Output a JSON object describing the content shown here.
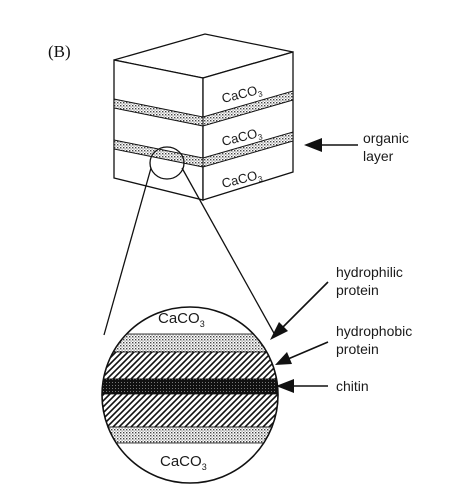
{
  "panel_label": "(B)",
  "cube": {
    "layers": [
      {
        "formula": "CaCO",
        "sub": "3"
      },
      {
        "formula": "CaCO",
        "sub": "3"
      },
      {
        "formula": "CaCO",
        "sub": "3"
      }
    ]
  },
  "callouts": {
    "organic_layer": {
      "line1": "organic",
      "line2": "layer"
    },
    "hydrophilic": {
      "line1": "hydrophilic",
      "line2": "protein"
    },
    "hydrophobic": {
      "line1": "hydrophobic",
      "line2": "protein"
    },
    "chitin": {
      "line1": "chitin"
    }
  },
  "magnified": {
    "top": {
      "formula": "CaCO",
      "sub": "3"
    },
    "bottom": {
      "formula": "CaCO",
      "sub": "3"
    }
  }
}
